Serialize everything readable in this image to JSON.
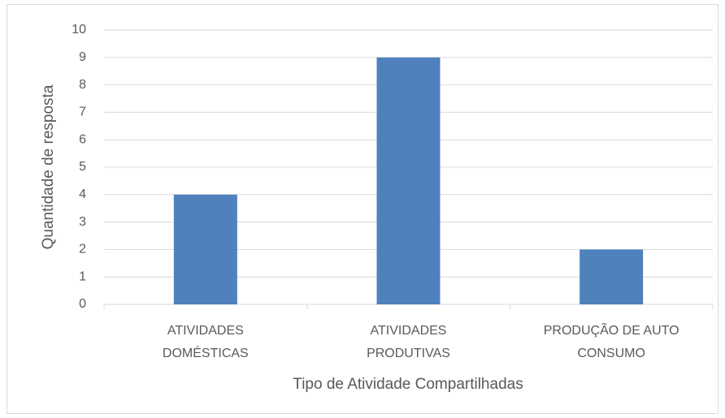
{
  "chart_data": {
    "type": "bar",
    "categories": [
      "ATIVIDADES\nDOMÉSTICAS",
      "ATIVIDADES\nPRODUTIVAS",
      "PRODUÇÃO DE AUTO\nCONSUMO"
    ],
    "values": [
      4,
      9,
      2
    ],
    "color": "#4f81bd",
    "ylim": [
      0,
      10
    ],
    "yticks": [
      0,
      1,
      2,
      3,
      4,
      5,
      6,
      7,
      8,
      9,
      10
    ],
    "grid": true,
    "xlabel": "Tipo de Atividade Compartilhadas",
    "ylabel": "Quantidade de resposta"
  }
}
